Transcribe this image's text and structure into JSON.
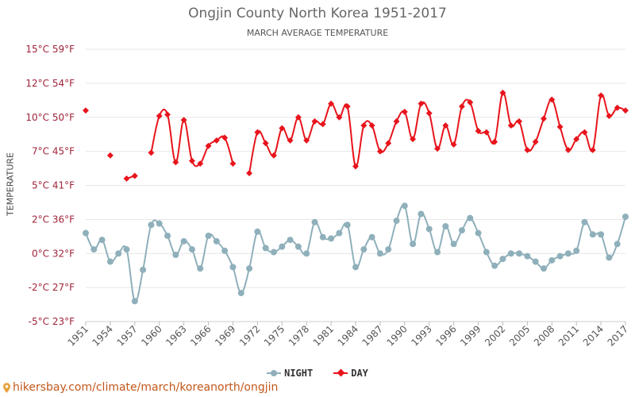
{
  "chart_data": {
    "type": "line",
    "title": "Ongjin County North Korea 1951-2017",
    "subtitle": "MARCH AVERAGE TEMPERATURE",
    "ylabel": "TEMPERATURE",
    "xlim": [
      1951,
      2017
    ],
    "ylim": [
      -5,
      15
    ],
    "y_ticks": [
      {
        "value": 15,
        "label": "15°C 59°F"
      },
      {
        "value": 12.5,
        "label": "12°C 54°F"
      },
      {
        "value": 10,
        "label": "10°C 50°F"
      },
      {
        "value": 7.5,
        "label": "7°C 45°F"
      },
      {
        "value": 5,
        "label": "5°C 41°F"
      },
      {
        "value": 2.5,
        "label": "2°C 36°F"
      },
      {
        "value": 0,
        "label": "0°C 32°F"
      },
      {
        "value": -2.5,
        "label": "-2°C 27°F"
      },
      {
        "value": -5,
        "label": "-5°C 23°F"
      }
    ],
    "x_ticks": [
      1951,
      1954,
      1957,
      1960,
      1963,
      1966,
      1969,
      1972,
      1975,
      1978,
      1981,
      1984,
      1987,
      1990,
      1993,
      1996,
      1999,
      2002,
      2005,
      2008,
      2011,
      2014,
      2017
    ],
    "grid": "horizontal",
    "legend_position": "bottom",
    "series": [
      {
        "name": "NIGHT",
        "color": "#8fb0bb",
        "marker": "circle",
        "points": [
          [
            1951,
            1.5
          ],
          [
            1952,
            0.3
          ],
          [
            1953,
            1.0
          ],
          [
            1954,
            -0.6
          ],
          [
            1955,
            0.0
          ],
          [
            1956,
            0.3
          ],
          [
            1957,
            -3.5
          ],
          [
            1958,
            -1.2
          ],
          [
            1959,
            2.1
          ],
          [
            1960,
            2.2
          ],
          [
            1961,
            1.3
          ],
          [
            1962,
            -0.1
          ],
          [
            1963,
            0.9
          ],
          [
            1964,
            0.3
          ],
          [
            1965,
            -1.1
          ],
          [
            1966,
            1.3
          ],
          [
            1967,
            0.9
          ],
          [
            1968,
            0.2
          ],
          [
            1969,
            -1.0
          ],
          [
            1970,
            -2.9
          ],
          [
            1971,
            -1.1
          ],
          [
            1972,
            1.6
          ],
          [
            1973,
            0.4
          ],
          [
            1974,
            0.1
          ],
          [
            1975,
            0.5
          ],
          [
            1976,
            1.0
          ],
          [
            1977,
            0.5
          ],
          [
            1978,
            0.0
          ],
          [
            1979,
            2.3
          ],
          [
            1980,
            1.2
          ],
          [
            1981,
            1.1
          ],
          [
            1982,
            1.5
          ],
          [
            1983,
            2.1
          ],
          [
            1984,
            -1.0
          ],
          [
            1985,
            0.3
          ],
          [
            1986,
            1.2
          ],
          [
            1987,
            0.0
          ],
          [
            1988,
            0.3
          ],
          [
            1989,
            2.4
          ],
          [
            1990,
            3.5
          ],
          [
            1991,
            0.7
          ],
          [
            1992,
            2.9
          ],
          [
            1993,
            1.8
          ],
          [
            1994,
            0.1
          ],
          [
            1995,
            2.0
          ],
          [
            1996,
            0.7
          ],
          [
            1997,
            1.7
          ],
          [
            1998,
            2.6
          ],
          [
            1999,
            1.5
          ],
          [
            2000,
            0.1
          ],
          [
            2001,
            -0.9
          ],
          [
            2002,
            -0.4
          ],
          [
            2003,
            0.0
          ],
          [
            2004,
            0.0
          ],
          [
            2005,
            -0.2
          ],
          [
            2006,
            -0.6
          ],
          [
            2007,
            -1.1
          ],
          [
            2008,
            -0.5
          ],
          [
            2009,
            -0.2
          ],
          [
            2010,
            0.0
          ],
          [
            2011,
            0.2
          ],
          [
            2012,
            2.3
          ],
          [
            2013,
            1.4
          ],
          [
            2014,
            1.4
          ],
          [
            2015,
            -0.3
          ],
          [
            2016,
            0.7
          ],
          [
            2017,
            2.7
          ]
        ]
      },
      {
        "name": "DAY",
        "color": "#e8141c",
        "marker": "diamond",
        "points": [
          [
            1951,
            10.5
          ],
          null,
          [
            1954,
            7.2
          ],
          null,
          [
            1956,
            5.5
          ],
          [
            1957,
            5.7
          ],
          null,
          [
            1959,
            7.4
          ],
          [
            1960,
            10.1
          ],
          [
            1961,
            10.2
          ],
          [
            1962,
            6.7
          ],
          [
            1963,
            9.8
          ],
          [
            1964,
            6.8
          ],
          [
            1965,
            6.6
          ],
          [
            1966,
            7.9
          ],
          [
            1967,
            8.3
          ],
          [
            1968,
            8.5
          ],
          [
            1969,
            6.6
          ],
          null,
          [
            1971,
            5.9
          ],
          [
            1972,
            8.9
          ],
          [
            1973,
            8.1
          ],
          [
            1974,
            7.2
          ],
          [
            1975,
            9.2
          ],
          [
            1976,
            8.3
          ],
          [
            1977,
            10.0
          ],
          [
            1978,
            8.3
          ],
          [
            1979,
            9.7
          ],
          [
            1980,
            9.5
          ],
          [
            1981,
            11.0
          ],
          [
            1982,
            10.0
          ],
          [
            1983,
            10.8
          ],
          [
            1984,
            6.4
          ],
          [
            1985,
            9.4
          ],
          [
            1986,
            9.4
          ],
          [
            1987,
            7.5
          ],
          [
            1988,
            8.1
          ],
          [
            1989,
            9.7
          ],
          [
            1990,
            10.4
          ],
          [
            1991,
            8.4
          ],
          [
            1992,
            11.0
          ],
          [
            1993,
            10.3
          ],
          [
            1994,
            7.7
          ],
          [
            1995,
            9.4
          ],
          [
            1996,
            8.0
          ],
          [
            1997,
            10.8
          ],
          [
            1998,
            11.1
          ],
          [
            1999,
            9.0
          ],
          [
            2000,
            8.9
          ],
          [
            2001,
            8.2
          ],
          [
            2002,
            11.8
          ],
          [
            2003,
            9.4
          ],
          [
            2004,
            9.7
          ],
          [
            2005,
            7.6
          ],
          [
            2006,
            8.2
          ],
          [
            2007,
            9.9
          ],
          [
            2008,
            11.3
          ],
          [
            2009,
            9.3
          ],
          [
            2010,
            7.6
          ],
          [
            2011,
            8.4
          ],
          [
            2012,
            8.9
          ],
          [
            2013,
            7.6
          ],
          [
            2014,
            11.6
          ],
          [
            2015,
            10.1
          ],
          [
            2016,
            10.7
          ],
          [
            2017,
            10.5
          ]
        ]
      }
    ]
  },
  "footer": {
    "url_text": "hikersbay.com/climate/march/koreanorth/ongjin",
    "icon": "location-pin-icon"
  }
}
